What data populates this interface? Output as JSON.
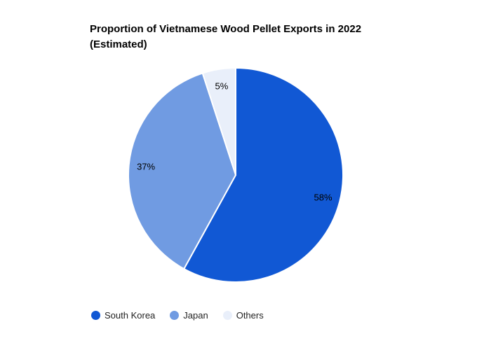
{
  "chart_data": {
    "type": "pie",
    "title": "Proportion of Vietnamese Wood Pellet Exports in 2022 (Estimated)",
    "title_lines": [
      "Proportion of Vietnamese Wood Pellet Exports in 2022",
      "(Estimated)"
    ],
    "categories": [
      "South Korea",
      "Japan",
      "Others"
    ],
    "values": [
      58,
      37,
      5
    ],
    "value_unit": "%",
    "slice_labels": [
      "58%",
      "37%",
      "5%"
    ],
    "colors": [
      "#1158D4",
      "#709BE2",
      "#E9EFFA"
    ],
    "slice_label_color": "#000000",
    "slice_border_color": "#ffffff",
    "start_angle_deg": 0,
    "direction": "clockwise",
    "legend_position": "bottom",
    "background": "#ffffff"
  },
  "legend": {
    "items": [
      {
        "label": "South Korea",
        "color": "#1158D4"
      },
      {
        "label": "Japan",
        "color": "#709BE2"
      },
      {
        "label": "Others",
        "color": "#E9EFFA"
      }
    ]
  }
}
